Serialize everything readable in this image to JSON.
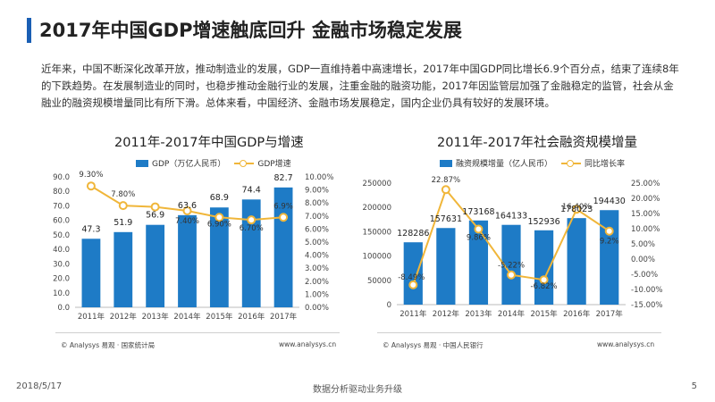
{
  "page": {
    "title": "2017年中国GDP增速触底回升  金融市场稳定发展",
    "intro": "近年来，中国不断深化改革开放，推动制造业的发展，GDP一直维持着中高速增长，2017年中国GDP同比增长6.9个百分点，结束了连续8年的下跌趋势。在发展制造业的同时，也稳步推动金融行业的发展，注重金融的融资功能，2017年因监管层加强了金融稳定的监管，社会从金融业的融资规模增量同比有所下滑。总体来看，中国经济、金融市场发展稳定，国内企业仍具有较好的发展环境。"
  },
  "footer": {
    "date": "2018/5/17",
    "center": "数据分析驱动业务升级",
    "page": "5"
  },
  "colors": {
    "bar": "#1e7bc6",
    "line": "#f0b63a",
    "accent": "#1a5fb4"
  },
  "chart_data": [
    {
      "type": "bar",
      "title": "2011年-2017年中国GDP与增速",
      "categories": [
        "2011年",
        "2012年",
        "2013年",
        "2014年",
        "2015年",
        "2016年",
        "2017年"
      ],
      "series": [
        {
          "name": "GDP（万亿人民币）",
          "type": "bar",
          "axis": "left",
          "values": [
            47.3,
            51.9,
            56.9,
            63.6,
            68.9,
            74.4,
            82.7
          ],
          "labels": [
            "47.3",
            "51.9",
            "56.9",
            "63.6",
            "68.9",
            "74.4",
            "82.7"
          ]
        },
        {
          "name": "GDP增速",
          "type": "line",
          "axis": "right",
          "values": [
            9.3,
            7.8,
            7.7,
            7.4,
            6.9,
            6.7,
            6.9
          ],
          "labels": [
            "9.30%",
            "7.80%",
            "",
            "7.40%",
            "6.90%",
            "6.70%",
            "6.9%"
          ]
        }
      ],
      "y_left": {
        "lim": [
          0,
          90
        ],
        "ticks": [
          "0.0",
          "10.0",
          "20.0",
          "30.0",
          "40.0",
          "50.0",
          "60.0",
          "70.0",
          "80.0",
          "90.0"
        ]
      },
      "y_right": {
        "lim": [
          0,
          10
        ],
        "ticks": [
          "0.00%",
          "1.00%",
          "2.00%",
          "3.00%",
          "4.00%",
          "5.00%",
          "6.00%",
          "7.00%",
          "8.00%",
          "9.00%",
          "10.00%"
        ]
      },
      "legend_position": "top",
      "source": "© Analysys 易观 · 国家统计局",
      "url": "www.analysys.cn"
    },
    {
      "type": "bar",
      "title": "2011年-2017年社会融资规模增量",
      "categories": [
        "2011年",
        "2012年",
        "2013年",
        "2014年",
        "2015年",
        "2016年",
        "2017年"
      ],
      "series": [
        {
          "name": "融资规模增量（亿人民币）",
          "type": "bar",
          "axis": "left",
          "values": [
            128286,
            157631,
            173168,
            164133,
            152936,
            178023,
            194430
          ],
          "labels": [
            "128286",
            "157631",
            "173168",
            "164133",
            "152936",
            "178023",
            "194430"
          ]
        },
        {
          "name": "同比增长率",
          "type": "line",
          "axis": "right",
          "values": [
            -8.49,
            22.87,
            9.86,
            -5.22,
            -6.82,
            16.4,
            9.2
          ],
          "labels": [
            "-8.49%",
            "22.87%",
            "9.86%",
            "-5.22%",
            "-6.82%",
            "16.40%",
            "9.2%"
          ]
        }
      ],
      "y_left": {
        "lim": [
          0,
          250000
        ],
        "ticks": [
          "0",
          "50000",
          "100000",
          "150000",
          "200000",
          "250000"
        ]
      },
      "y_right": {
        "lim": [
          -15,
          25
        ],
        "ticks": [
          "-15.00%",
          "-10.00%",
          "-5.00%",
          "0.00%",
          "5.00%",
          "10.00%",
          "15.00%",
          "20.00%",
          "25.00%"
        ]
      },
      "legend_position": "top",
      "source": "© Analysys 易观 · 中国人民银行",
      "url": "www.analysys.cn"
    }
  ]
}
